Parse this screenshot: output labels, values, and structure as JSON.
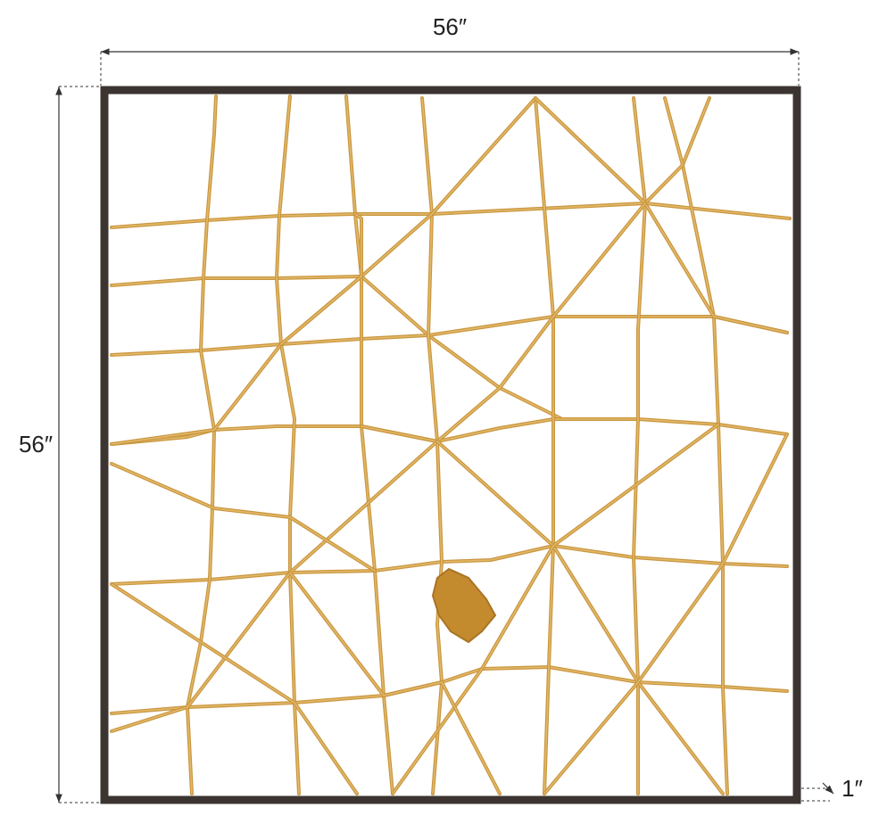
{
  "dimensions": {
    "width": "56″",
    "height": "56″",
    "depth": "1″"
  }
}
